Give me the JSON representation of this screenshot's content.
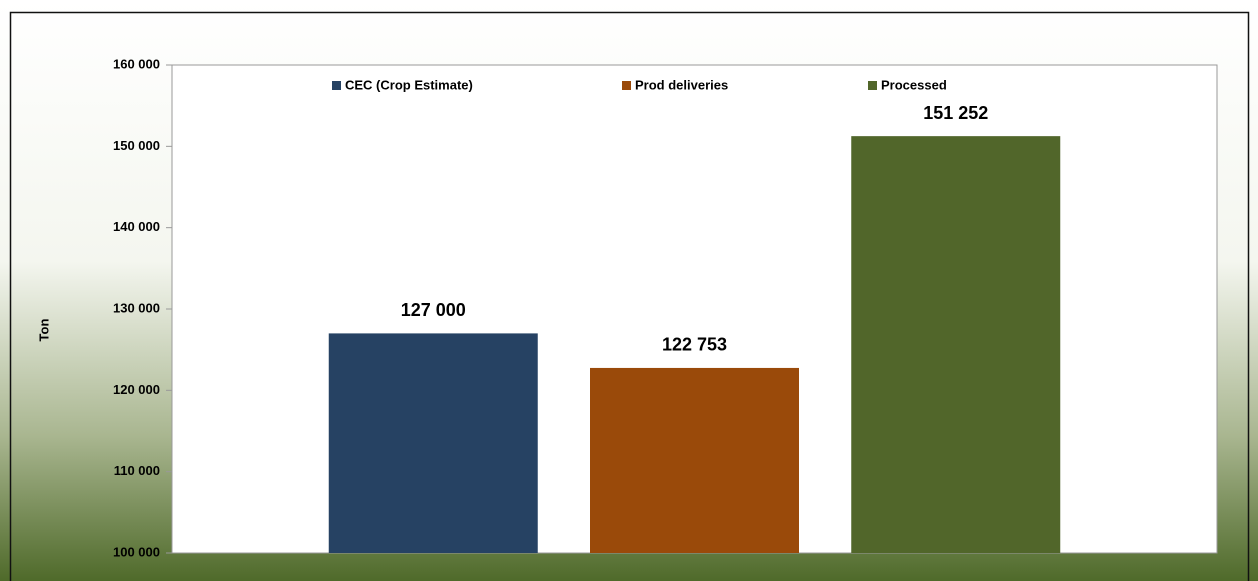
{
  "chart_data": {
    "type": "bar",
    "ylabel": "Ton",
    "series": [
      {
        "name": "CEC (Crop Estimate)",
        "color": "#264263",
        "values": [
          127000
        ],
        "value_labels": [
          "127 000"
        ]
      },
      {
        "name": "Prod deliveries",
        "color": "#9a4a0a",
        "values": [
          122753
        ],
        "value_labels": [
          "122 753"
        ]
      },
      {
        "name": "Processed",
        "color": "#51662a",
        "values": [
          151252
        ],
        "value_labels": [
          "151 252"
        ]
      }
    ],
    "ylim": [
      100000,
      160000
    ],
    "yticks": [
      {
        "value": 100000,
        "label": "100 000"
      },
      {
        "value": 110000,
        "label": "110 000"
      },
      {
        "value": 120000,
        "label": "120 000"
      },
      {
        "value": 130000,
        "label": "130 000"
      },
      {
        "value": 140000,
        "label": "140 000"
      },
      {
        "value": 150000,
        "label": "150 000"
      },
      {
        "value": 160000,
        "label": "160 000"
      }
    ],
    "legend": "top"
  }
}
